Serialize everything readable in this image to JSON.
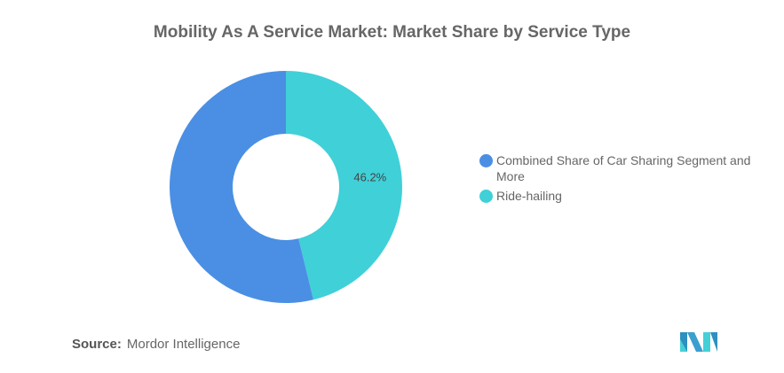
{
  "chart_data": {
    "type": "pie",
    "title": "Mobility As A Service Market: Market Share by Service Type",
    "donut": true,
    "slices": [
      {
        "label": "Ride-hailing",
        "value": 46.2,
        "color": "#40d0d8",
        "data_label": "46.2%"
      },
      {
        "label": "Combined Share of Car Sharing Segment and More",
        "value": 53.8,
        "color": "#4a8fe4",
        "data_label": ""
      }
    ],
    "legend": [
      "Combined Share of Car Sharing Segment and More",
      "Ride-hailing"
    ],
    "legend_position": "right"
  },
  "source": {
    "label": "Source:",
    "value": "Mordor Intelligence"
  },
  "logo_text": "Mordor Intelligence"
}
